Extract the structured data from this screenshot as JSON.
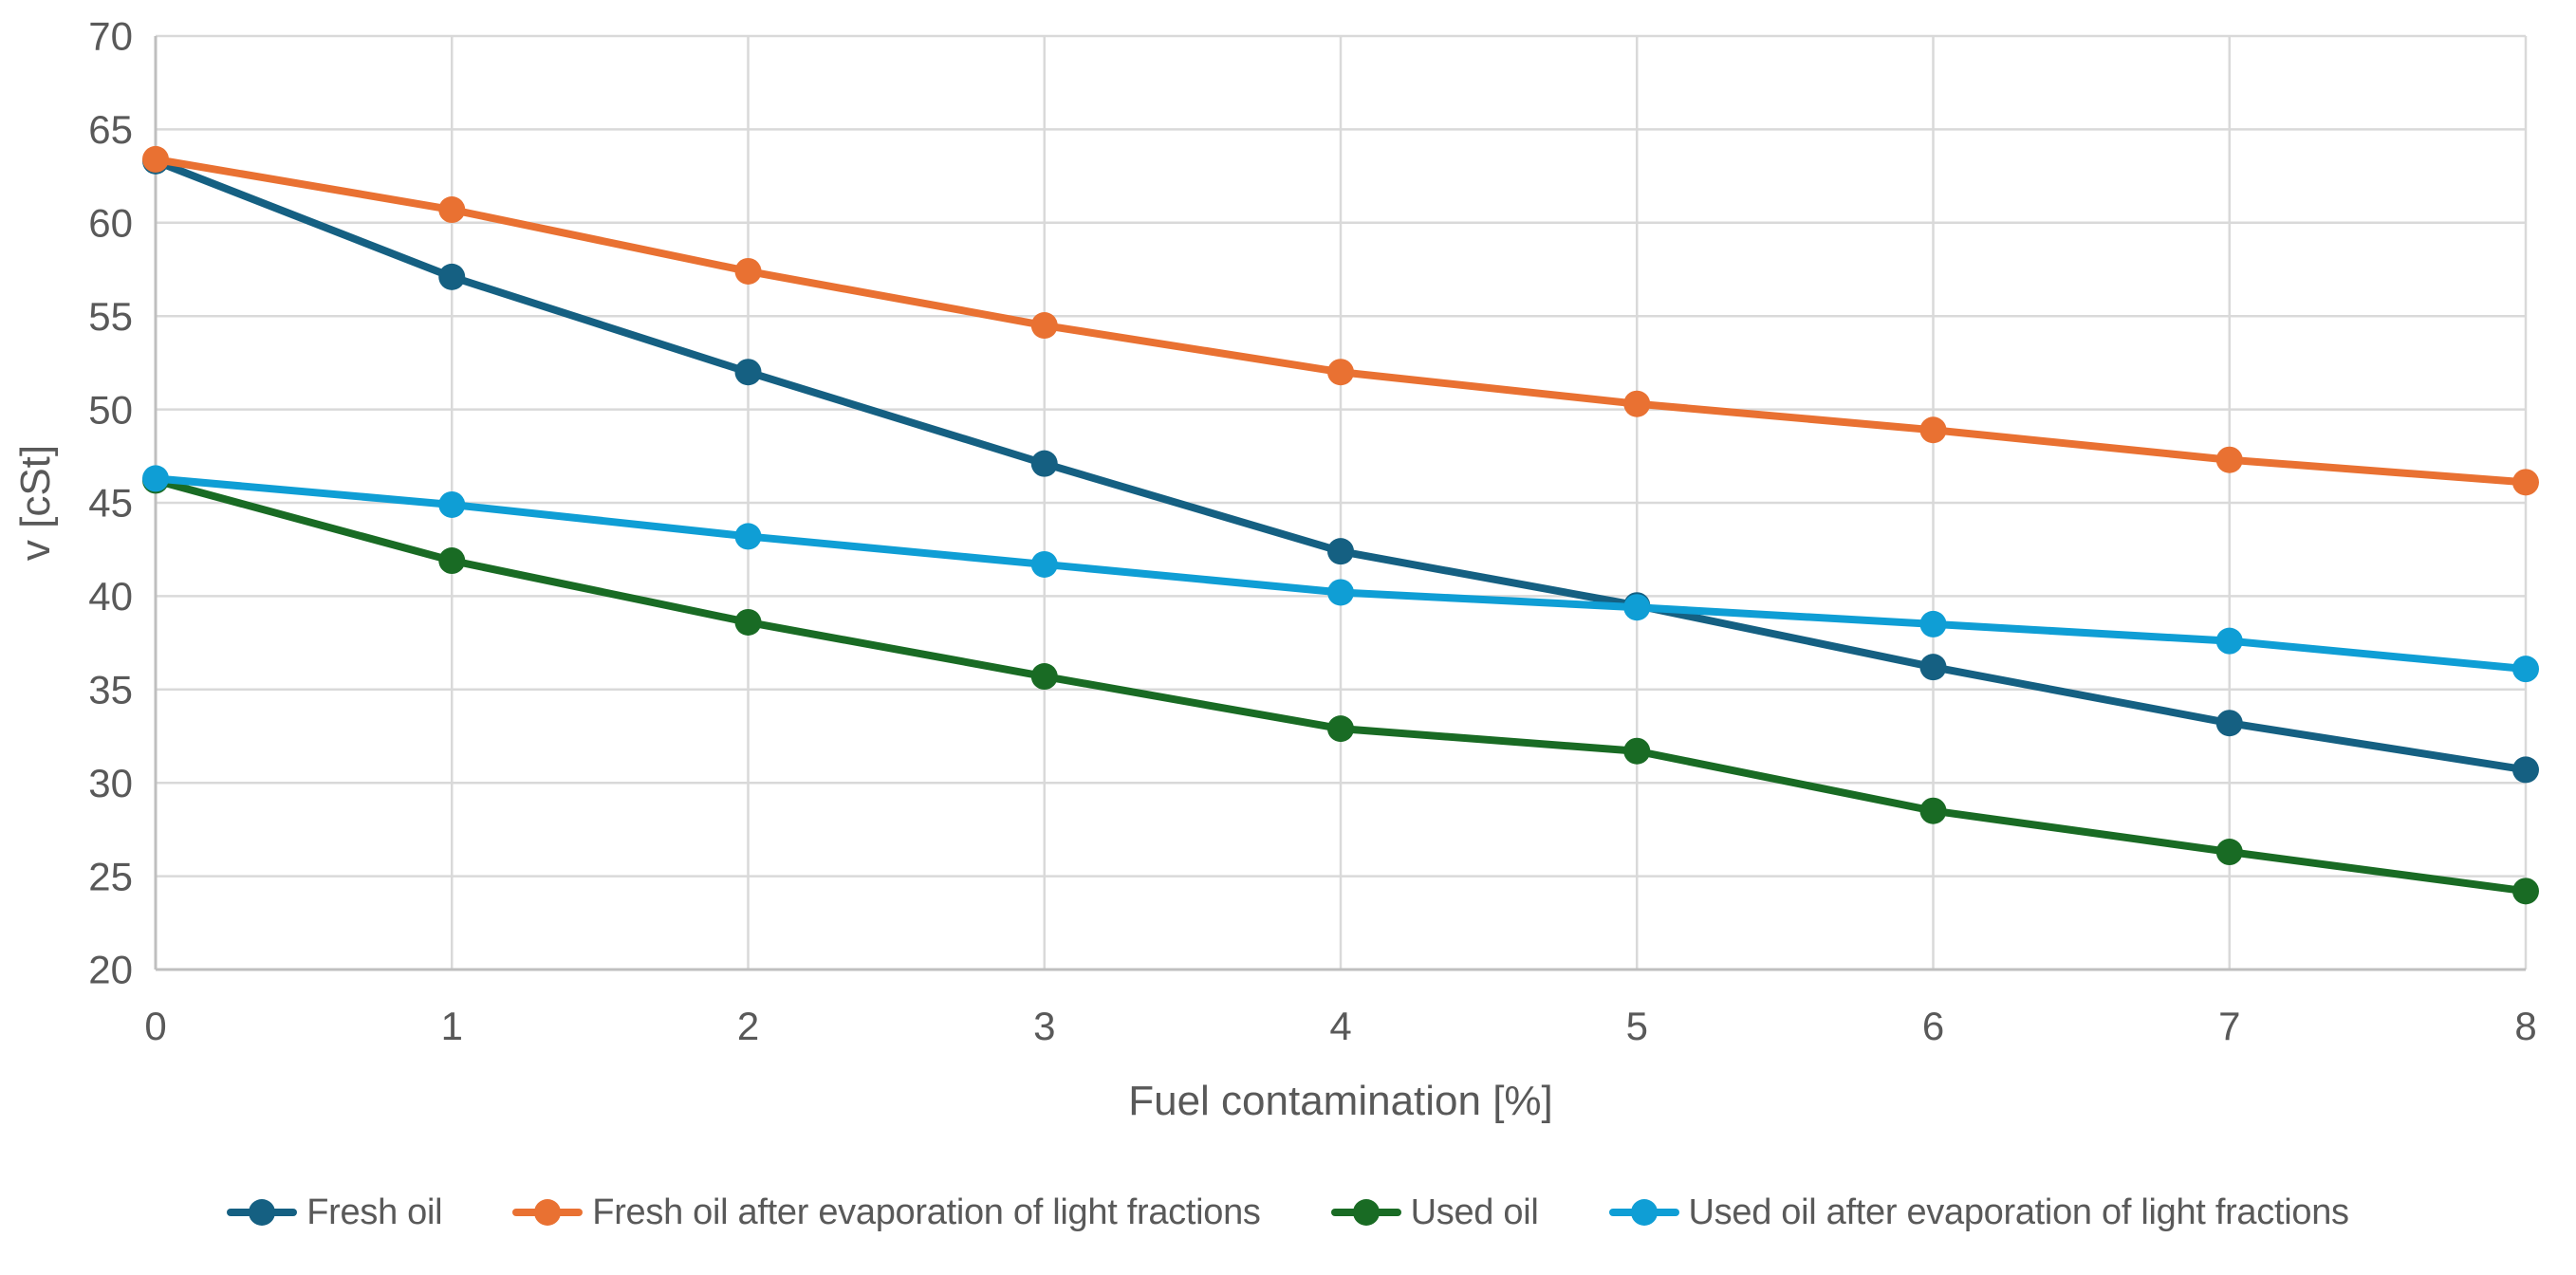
{
  "chart_data": {
    "type": "line",
    "title": "",
    "xlabel": "Fuel contamination [%]",
    "ylabel": "v [cSt]",
    "xlim": [
      0,
      8
    ],
    "ylim": [
      20,
      70
    ],
    "x_ticks": [
      0,
      1,
      2,
      3,
      4,
      5,
      6,
      7,
      8
    ],
    "y_ticks": [
      20,
      25,
      30,
      35,
      40,
      45,
      50,
      55,
      60,
      65,
      70
    ],
    "grid": true,
    "legend_position": "bottom",
    "x": [
      0,
      1,
      2,
      3,
      4,
      5,
      6,
      7,
      8
    ],
    "series": [
      {
        "name": "Fresh oil",
        "color": "#156082",
        "values": [
          63.3,
          57.1,
          52.0,
          47.1,
          42.4,
          39.5,
          36.2,
          33.2,
          30.7
        ]
      },
      {
        "name": "Fresh oil after evaporation of light fractions",
        "color": "#E97132",
        "values": [
          63.4,
          60.7,
          57.4,
          54.5,
          52.0,
          50.3,
          48.9,
          47.3,
          46.1
        ]
      },
      {
        "name": "Used oil",
        "color": "#196B24",
        "values": [
          46.2,
          41.9,
          38.6,
          35.7,
          32.9,
          31.7,
          28.5,
          26.3,
          24.2
        ]
      },
      {
        "name": "Used oil after evaporation of light fractions",
        "color": "#0F9ED5",
        "values": [
          46.3,
          44.9,
          43.2,
          41.7,
          40.2,
          39.4,
          38.5,
          37.6,
          36.1
        ]
      }
    ]
  },
  "colors": {
    "gridline": "#D9D9D9",
    "axis_line": "#BFBFBF",
    "text": "#595959",
    "background": "#FFFFFF"
  }
}
